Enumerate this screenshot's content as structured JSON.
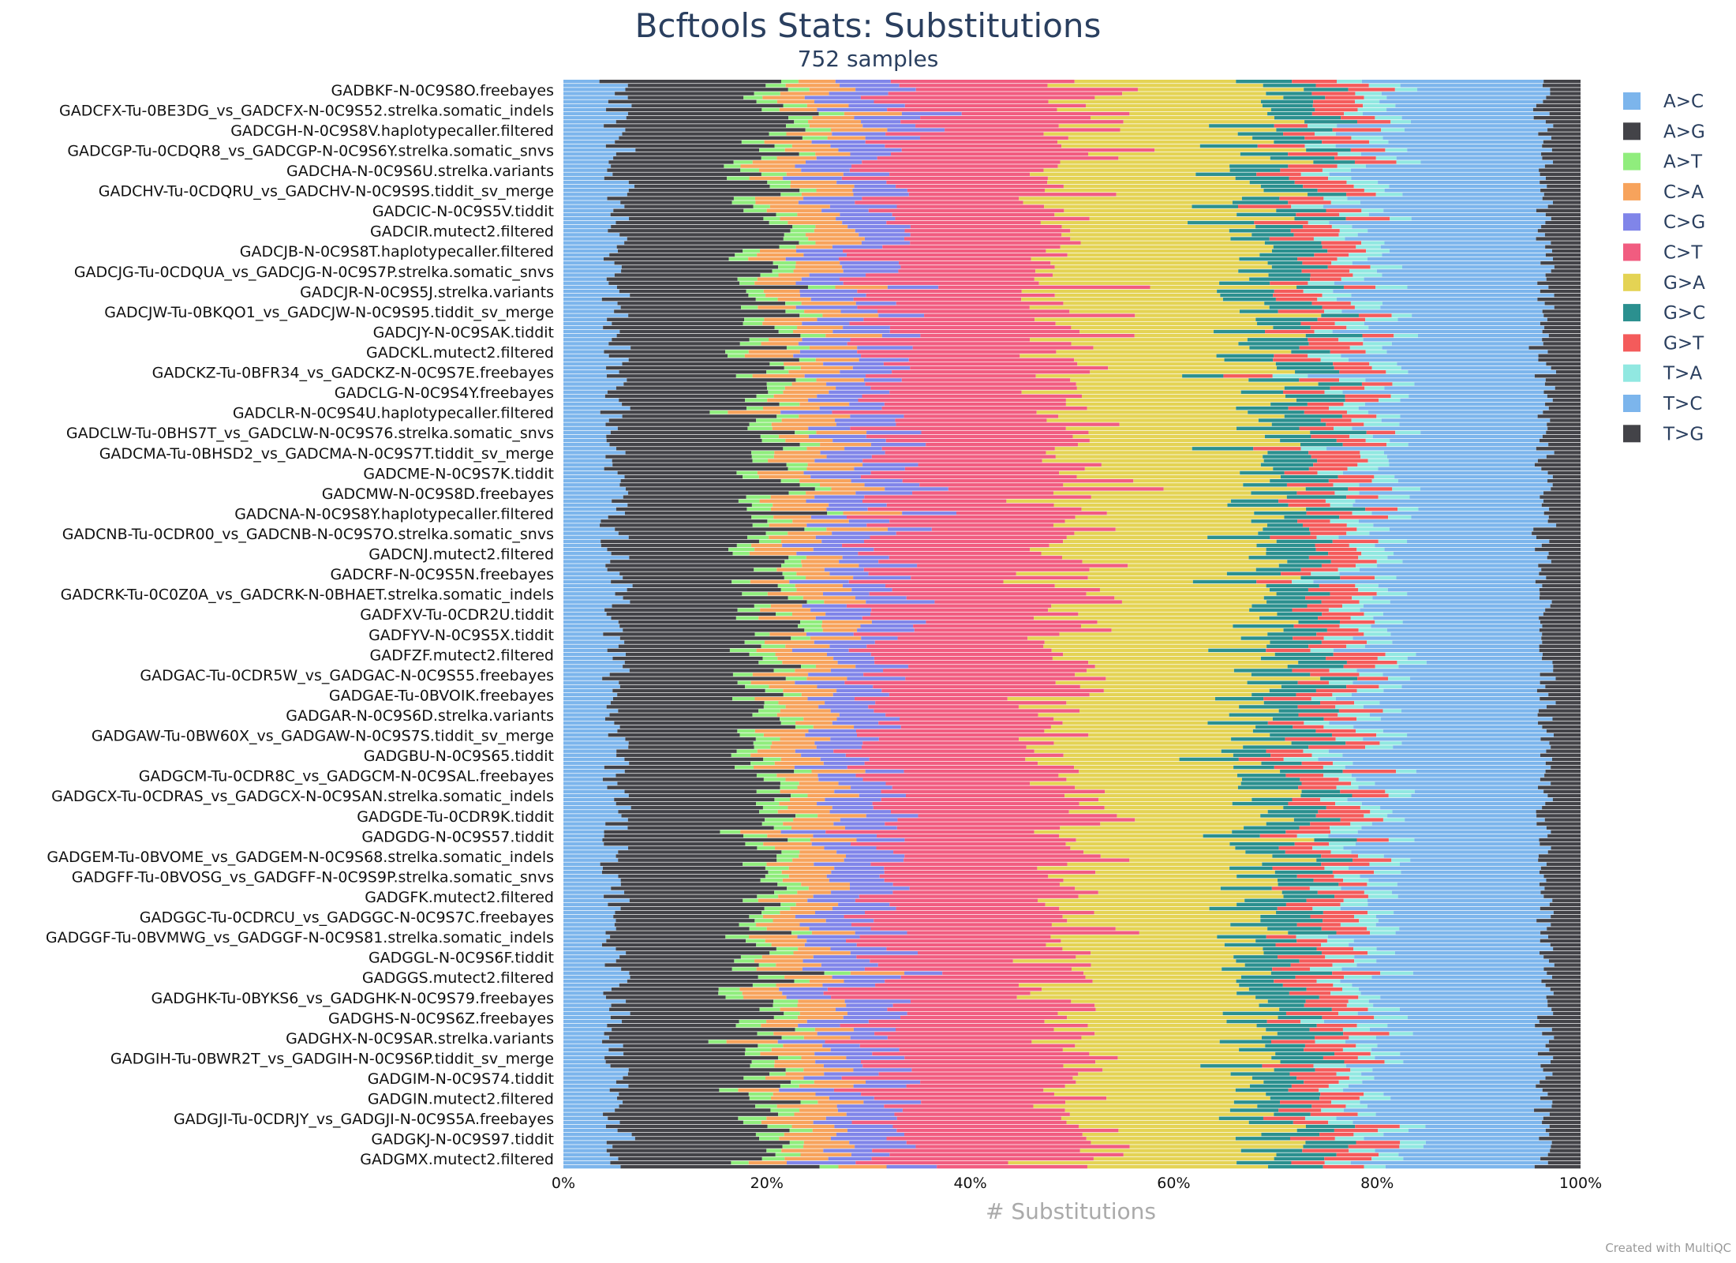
{
  "chart_data": {
    "type": "bar",
    "orientation": "horizontal",
    "stacked": true,
    "normalized": true,
    "title": "Bcftools Stats: Substitutions",
    "subtitle": "752 samples",
    "xlabel": "# Substitutions",
    "ylabel": "",
    "xlim": [
      0,
      100
    ],
    "xticks": [
      "0%",
      "20%",
      "40%",
      "60%",
      "80%",
      "100%"
    ],
    "legend_position": "right",
    "grid": false,
    "series": [
      {
        "name": "A>C",
        "color": "#7cb5ec",
        "mean_percent": 5.1
      },
      {
        "name": "A>G",
        "color": "#434348",
        "mean_percent": 15.0
      },
      {
        "name": "A>T",
        "color": "#90ed7d",
        "mean_percent": 2.0
      },
      {
        "name": "C>A",
        "color": "#f7a35c",
        "mean_percent": 4.5
      },
      {
        "name": "C>G",
        "color": "#8085e9",
        "mean_percent": 5.0
      },
      {
        "name": "C>T",
        "color": "#f15c80",
        "mean_percent": 18.4
      },
      {
        "name": "G>A",
        "color": "#e4d354",
        "mean_percent": 18.2
      },
      {
        "name": "G>C",
        "color": "#2b908f",
        "mean_percent": 5.0
      },
      {
        "name": "G>T",
        "color": "#f45b5b",
        "mean_percent": 4.0
      },
      {
        "name": "T>A",
        "color": "#91e8e1",
        "mean_percent": 2.5
      },
      {
        "name": "T>C",
        "color": "#7cb5ec",
        "mean_percent": 16.8
      },
      {
        "name": "T>G",
        "color": "#434348",
        "mean_percent": 3.5
      }
    ],
    "sample_labels": [
      "GADBKF-N-0C9S8O.freebayes",
      "GADCFX-Tu-0BE3DG_vs_GADCFX-N-0C9S52.strelka.somatic_indels",
      "GADCGH-N-0C9S8V.haplotypecaller.filtered",
      "GADCGP-Tu-0CDQR8_vs_GADCGP-N-0C9S6Y.strelka.somatic_snvs",
      "GADCHA-N-0C9S6U.strelka.variants",
      "GADCHV-Tu-0CDQRU_vs_GADCHV-N-0C9S9S.tiddit_sv_merge",
      "GADCIC-N-0C9S5V.tiddit",
      "GADCIR.mutect2.filtered",
      "GADCJB-N-0C9S8T.haplotypecaller.filtered",
      "GADCJG-Tu-0CDQUA_vs_GADCJG-N-0C9S7P.strelka.somatic_snvs",
      "GADCJR-N-0C9S5J.strelka.variants",
      "GADCJW-Tu-0BKQO1_vs_GADCJW-N-0C9S95.tiddit_sv_merge",
      "GADCJY-N-0C9SAK.tiddit",
      "GADCKL.mutect2.filtered",
      "GADCKZ-Tu-0BFR34_vs_GADCKZ-N-0C9S7E.freebayes",
      "GADCLG-N-0C9S4Y.freebayes",
      "GADCLR-N-0C9S4U.haplotypecaller.filtered",
      "GADCLW-Tu-0BHS7T_vs_GADCLW-N-0C9S76.strelka.somatic_snvs",
      "GADCMA-Tu-0BHSD2_vs_GADCMA-N-0C9S7T.tiddit_sv_merge",
      "GADCME-N-0C9S7K.tiddit",
      "GADCMW-N-0C9S8D.freebayes",
      "GADCNA-N-0C9S8Y.haplotypecaller.filtered",
      "GADCNB-Tu-0CDR00_vs_GADCNB-N-0C9S7O.strelka.somatic_snvs",
      "GADCNJ.mutect2.filtered",
      "GADCRF-N-0C9S5N.freebayes",
      "GADCRK-Tu-0C0Z0A_vs_GADCRK-N-0BHAET.strelka.somatic_indels",
      "GADFXV-Tu-0CDR2U.tiddit",
      "GADFYV-N-0C9S5X.tiddit",
      "GADFZF.mutect2.filtered",
      "GADGAC-Tu-0CDR5W_vs_GADGAC-N-0C9S55.freebayes",
      "GADGAE-Tu-0BVOIK.freebayes",
      "GADGAR-N-0C9S6D.strelka.variants",
      "GADGAW-Tu-0BW60X_vs_GADGAW-N-0C9S7S.tiddit_sv_merge",
      "GADGBU-N-0C9S65.tiddit",
      "GADGCM-Tu-0CDR8C_vs_GADGCM-N-0C9SAL.freebayes",
      "GADGCX-Tu-0CDRAS_vs_GADGCX-N-0C9SAN.strelka.somatic_indels",
      "GADGDE-Tu-0CDR9K.tiddit",
      "GADGDG-N-0C9S57.tiddit",
      "GADGEM-Tu-0BVOME_vs_GADGEM-N-0C9S68.strelka.somatic_indels",
      "GADGFF-Tu-0BVOSG_vs_GADGFF-N-0C9S9P.strelka.somatic_snvs",
      "GADGFK.mutect2.filtered",
      "GADGGC-Tu-0CDRCU_vs_GADGGC-N-0C9S7C.freebayes",
      "GADGGF-Tu-0BVMWG_vs_GADGGF-N-0C9S81.strelka.somatic_indels",
      "GADGGL-N-0C9S6F.tiddit",
      "GADGGS.mutect2.filtered",
      "GADGHK-Tu-0BYKS6_vs_GADGHK-N-0C9S79.freebayes",
      "GADGHS-N-0C9S6Z.freebayes",
      "GADGHX-N-0C9SAR.strelka.variants",
      "GADGIH-Tu-0BWR2T_vs_GADGIH-N-0C9S6P.tiddit_sv_merge",
      "GADGIM-N-0C9S74.tiddit",
      "GADGIN.mutect2.filtered",
      "GADGJI-Tu-0CDRJY_vs_GADGJI-N-0C9S5A.freebayes",
      "GADGKJ-N-0C9S97.tiddit",
      "GADGMX.mutect2.filtered"
    ]
  },
  "footer": {
    "credit": "Created with MultiQC"
  }
}
